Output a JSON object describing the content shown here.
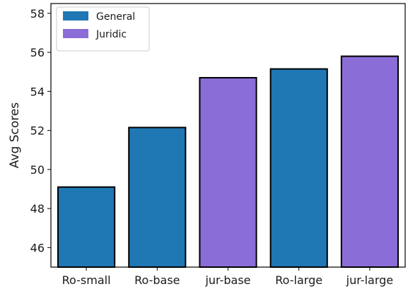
{
  "chart_data": {
    "type": "bar",
    "title": "",
    "xlabel": "",
    "ylabel": "Avg Scores",
    "ylim": [
      45,
      58.5
    ],
    "yticks": [
      46,
      48,
      50,
      52,
      54,
      56,
      58
    ],
    "categories": [
      "Ro-small",
      "Ro-base",
      "jur-base",
      "Ro-large",
      "jur-large"
    ],
    "values": [
      49.1,
      52.15,
      54.7,
      55.15,
      55.8
    ],
    "groups": [
      "General",
      "General",
      "Juridic",
      "General",
      "Juridic"
    ],
    "legend": {
      "placement": "top-left",
      "entries": [
        {
          "label": "General",
          "color": "#1f77b4"
        },
        {
          "label": "Juridic",
          "color": "#8a6dd6"
        }
      ]
    },
    "grid": false,
    "bar_edge_color": "#000000"
  }
}
